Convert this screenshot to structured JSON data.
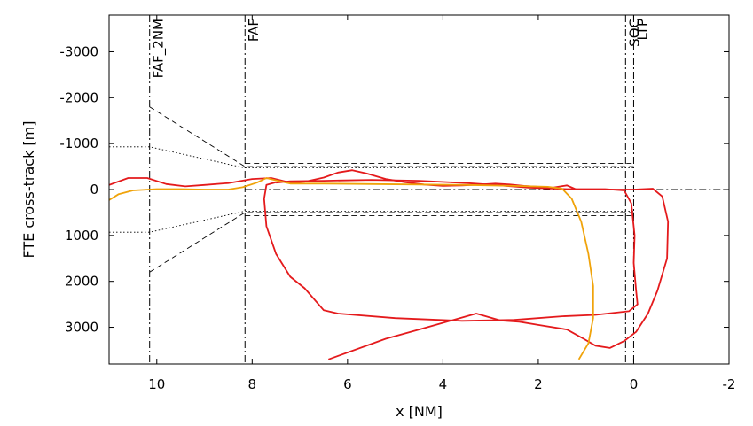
{
  "chart_data": {
    "type": "line",
    "xlabel": "x [NM]",
    "ylabel": "FTE cross-track [m]",
    "xlim": [
      11,
      -2
    ],
    "ylim": [
      -3800,
      3800
    ],
    "xticks": [
      10,
      8,
      6,
      4,
      2,
      0,
      -2
    ],
    "yticks": [
      -3000,
      -2000,
      -1000,
      0,
      1000,
      2000,
      3000
    ],
    "grid": false,
    "reference_lines": [
      {
        "label": "FAF_2NM",
        "x": 10.15
      },
      {
        "label": "FAF",
        "x": 8.15
      },
      {
        "label": "SOC",
        "x": 0.17
      },
      {
        "label": "LTP",
        "x": 0.0
      }
    ],
    "corridors": {
      "dashed_funnel": [
        [
          10.15,
          -1800
        ],
        [
          8.15,
          -500
        ],
        [
          0.0,
          -500
        ],
        [
          10.15,
          1800
        ],
        [
          8.15,
          500
        ],
        [
          0.0,
          500
        ]
      ],
      "dashed_inner": [
        [
          8.15,
          -570
        ],
        [
          0.0,
          -570
        ],
        [
          8.15,
          570
        ],
        [
          0.0,
          570
        ]
      ],
      "dotted_funnel": [
        [
          11.0,
          -930
        ],
        [
          10.15,
          -930
        ],
        [
          8.15,
          -470
        ],
        [
          0.0,
          -470
        ],
        [
          11.0,
          930
        ],
        [
          10.15,
          930
        ],
        [
          8.15,
          470
        ],
        [
          0.0,
          470
        ]
      ]
    },
    "series": [
      {
        "color": "#e41a1c",
        "points": [
          [
            11.0,
            -100
          ],
          [
            10.6,
            -250
          ],
          [
            10.2,
            -250
          ],
          [
            9.8,
            -120
          ],
          [
            9.4,
            -70
          ],
          [
            9.0,
            -100
          ],
          [
            8.5,
            -140
          ],
          [
            8.0,
            -230
          ],
          [
            7.6,
            -250
          ],
          [
            7.2,
            -150
          ],
          [
            6.9,
            -170
          ],
          [
            6.5,
            -260
          ],
          [
            6.2,
            -370
          ],
          [
            5.9,
            -420
          ],
          [
            5.6,
            -350
          ],
          [
            5.2,
            -230
          ],
          [
            4.8,
            -160
          ],
          [
            4.4,
            -110
          ],
          [
            4.0,
            -80
          ],
          [
            3.6,
            -90
          ],
          [
            3.2,
            -110
          ],
          [
            2.9,
            -130
          ],
          [
            2.6,
            -110
          ],
          [
            2.3,
            -80
          ],
          [
            2.0,
            -60
          ],
          [
            1.7,
            -40
          ],
          [
            1.4,
            -90
          ],
          [
            1.2,
            0
          ],
          [
            0.9,
            0
          ],
          [
            0.5,
            0
          ],
          [
            0.0,
            0
          ],
          [
            -0.4,
            -20
          ],
          [
            -0.6,
            150
          ],
          [
            -0.72,
            700
          ],
          [
            -0.7,
            1500
          ],
          [
            -0.5,
            2200
          ],
          [
            -0.3,
            2700
          ],
          [
            -0.05,
            3100
          ],
          [
            0.2,
            3300
          ],
          [
            0.5,
            3450
          ],
          [
            0.8,
            3400
          ],
          [
            1.05,
            3250
          ],
          [
            1.4,
            3050
          ],
          [
            2.0,
            2950
          ],
          [
            2.4,
            2880
          ],
          [
            2.8,
            2850
          ],
          [
            3.3,
            2700
          ],
          [
            4.5,
            3050
          ],
          [
            5.2,
            3250
          ],
          [
            6.4,
            3700
          ]
        ]
      },
      {
        "color": "#e41a1c",
        "points": [
          [
            7.5,
            -150
          ],
          [
            7.2,
            -180
          ],
          [
            6.5,
            -190
          ],
          [
            5.5,
            -210
          ],
          [
            4.5,
            -190
          ],
          [
            3.5,
            -140
          ],
          [
            2.8,
            -90
          ],
          [
            2.2,
            -40
          ],
          [
            1.4,
            -10
          ],
          [
            0.6,
            -10
          ],
          [
            0.2,
            20
          ],
          [
            0.05,
            300
          ],
          [
            -0.02,
            1000
          ],
          [
            0.0,
            1600
          ],
          [
            -0.05,
            2200
          ],
          [
            -0.08,
            2500
          ],
          [
            0.1,
            2650
          ],
          [
            0.8,
            2730
          ],
          [
            1.5,
            2760
          ],
          [
            2.5,
            2840
          ],
          [
            3.6,
            2860
          ],
          [
            5.0,
            2800
          ],
          [
            6.2,
            2700
          ],
          [
            6.5,
            2630
          ],
          [
            6.9,
            2150
          ],
          [
            7.2,
            1900
          ],
          [
            7.5,
            1400
          ],
          [
            7.7,
            800
          ],
          [
            7.75,
            200
          ],
          [
            7.7,
            -100
          ],
          [
            7.5,
            -160
          ]
        ]
      },
      {
        "color": "#f0a30a",
        "points": [
          [
            11.0,
            230
          ],
          [
            10.8,
            100
          ],
          [
            10.5,
            20
          ],
          [
            10.0,
            -10
          ],
          [
            9.5,
            -10
          ],
          [
            9.0,
            0
          ],
          [
            8.5,
            0
          ],
          [
            8.2,
            -50
          ],
          [
            7.9,
            -150
          ],
          [
            7.7,
            -250
          ],
          [
            7.5,
            -200
          ],
          [
            7.2,
            -130
          ],
          [
            6.5,
            -130
          ],
          [
            5.5,
            -120
          ],
          [
            4.5,
            -110
          ],
          [
            3.5,
            -100
          ],
          [
            2.5,
            -80
          ],
          [
            1.8,
            -60
          ],
          [
            1.5,
            -20
          ],
          [
            1.3,
            200
          ],
          [
            1.1,
            700
          ],
          [
            0.95,
            1400
          ],
          [
            0.85,
            2100
          ],
          [
            0.85,
            2800
          ],
          [
            0.95,
            3350
          ],
          [
            1.15,
            3700
          ]
        ]
      }
    ]
  }
}
